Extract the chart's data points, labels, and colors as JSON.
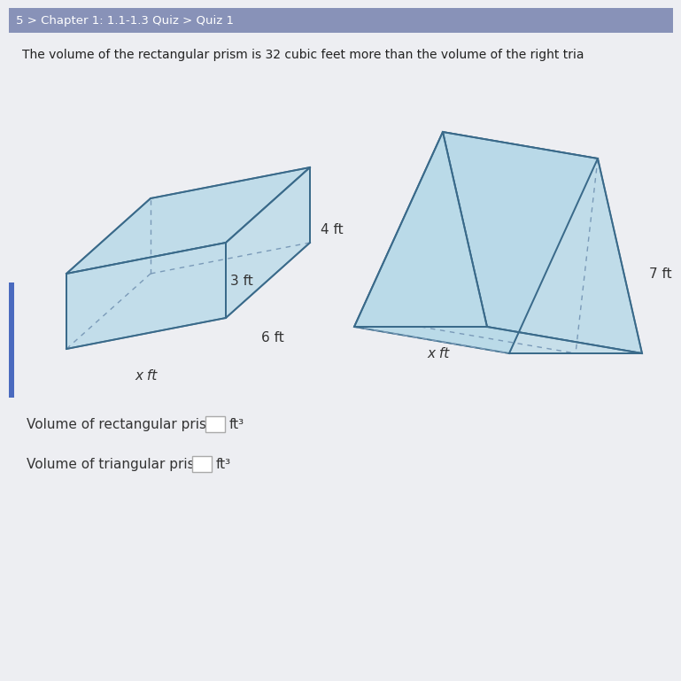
{
  "bg_color": "#edeef2",
  "header_color": "#8892b8",
  "header_text": "5 > Chapter 1: 1.1-1.3 Quiz > Quiz 1",
  "header_text_color": "#ffffff",
  "main_bg": "#edeef2",
  "title_text": "The volume of the rectangular prism is 32 cubic feet more than the volume of the right tria",
  "title_color": "#222222",
  "prism_fill": "#b8d9e8",
  "prism_edge": "#3a6a8a",
  "rect_label_3ft": "3 ft",
  "rect_label_6ft": "6 ft",
  "rect_label_xft": "x ft",
  "tri_label_4ft": "4 ft",
  "tri_label_7ft": "7 ft",
  "tri_label_xft": "x ft",
  "vol_rect_label": "Volume of rectangular prism:",
  "vol_tri_label": "Volume of triangular prism:",
  "ft3": "ft³",
  "label_color": "#333333",
  "dashed_color": "#7a9ab8",
  "left_bar_color": "#4a6abf"
}
